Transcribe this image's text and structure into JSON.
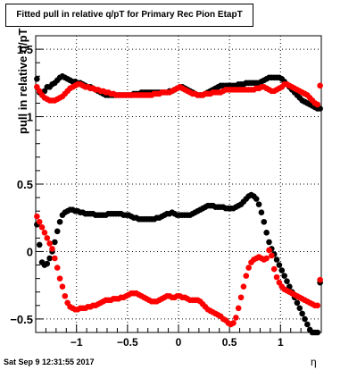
{
  "title": "Fitted pull in relative q/pT for Primary Rec Pion EtapT",
  "timestamp": "Sat Sep  9 12:31:55 2017",
  "chart_data": {
    "type": "scatter",
    "title": "Fitted pull in relative q/pT for Primary Rec Pion EtapT",
    "xlabel": "η",
    "ylabel": "pull in relative q/pT",
    "xlim": [
      -1.4,
      1.4
    ],
    "ylim": [
      -0.6,
      1.6
    ],
    "grid": true,
    "xticks": [
      -1,
      -0.5,
      0,
      0.5,
      1
    ],
    "xtick_labels": [
      "−1",
      "−0.5",
      "0",
      "0.5",
      "1"
    ],
    "yticks": [
      -0.5,
      0,
      0.5,
      1,
      1.5
    ],
    "ytick_labels": [
      "−0.5",
      "0",
      "0.5",
      "1",
      "1.5"
    ],
    "series": [
      {
        "color": "#000000",
        "x": [
          -1.388,
          -1.363,
          -1.338,
          -1.313,
          -1.288,
          -1.263,
          -1.238,
          -1.213,
          -1.188,
          -1.163,
          -1.138,
          -1.113,
          -1.088,
          -1.063,
          -1.038,
          -1.013,
          -0.988,
          -0.963,
          -0.938,
          -0.913,
          -0.888,
          -0.863,
          -0.838,
          -0.813,
          -0.788,
          -0.763,
          -0.738,
          -0.713,
          -0.688,
          -0.663,
          -0.638,
          -0.613,
          -0.588,
          -0.563,
          -0.538,
          -0.513,
          -0.488,
          -0.463,
          -0.438,
          -0.413,
          -0.388,
          -0.363,
          -0.338,
          -0.313,
          -0.288,
          -0.263,
          -0.238,
          -0.213,
          -0.188,
          -0.163,
          -0.138,
          -0.113,
          -0.088,
          -0.063,
          -0.038,
          -0.013,
          0.013,
          0.038,
          0.063,
          0.088,
          0.113,
          0.138,
          0.163,
          0.188,
          0.213,
          0.238,
          0.263,
          0.288,
          0.313,
          0.338,
          0.363,
          0.388,
          0.413,
          0.438,
          0.463,
          0.488,
          0.513,
          0.538,
          0.563,
          0.588,
          0.613,
          0.638,
          0.663,
          0.688,
          0.713,
          0.738,
          0.763,
          0.788,
          0.813,
          0.838,
          0.863,
          0.888,
          0.913,
          0.938,
          0.963,
          0.988,
          1.013,
          1.038,
          1.063,
          1.088,
          1.113,
          1.138,
          1.163,
          1.188,
          1.213,
          1.238,
          1.263,
          1.288,
          1.313,
          1.338,
          1.363,
          1.388
        ],
        "y": [
          1.28,
          1.18,
          1.17,
          1.19,
          1.22,
          1.22,
          1.24,
          1.25,
          1.27,
          1.29,
          1.3,
          1.29,
          1.28,
          1.27,
          1.26,
          1.26,
          1.25,
          1.25,
          1.24,
          1.23,
          1.22,
          1.22,
          1.21,
          1.2,
          1.19,
          1.18,
          1.17,
          1.16,
          1.16,
          1.16,
          1.16,
          1.16,
          1.16,
          1.16,
          1.16,
          1.16,
          1.16,
          1.16,
          1.17,
          1.17,
          1.17,
          1.18,
          1.18,
          1.18,
          1.18,
          1.18,
          1.18,
          1.18,
          1.18,
          1.18,
          1.18,
          1.18,
          1.19,
          1.19,
          1.2,
          1.21,
          1.22,
          1.22,
          1.21,
          1.2,
          1.19,
          1.18,
          1.17,
          1.16,
          1.16,
          1.16,
          1.17,
          1.18,
          1.19,
          1.2,
          1.21,
          1.22,
          1.23,
          1.23,
          1.23,
          1.23,
          1.23,
          1.23,
          1.23,
          1.24,
          1.24,
          1.24,
          1.25,
          1.25,
          1.25,
          1.25,
          1.25,
          1.25,
          1.26,
          1.27,
          1.28,
          1.29,
          1.29,
          1.29,
          1.29,
          1.29,
          1.28,
          1.26,
          1.24,
          1.22,
          1.2,
          1.18,
          1.16,
          1.14,
          1.12,
          1.11,
          1.1,
          1.09,
          1.08,
          1.07,
          1.06,
          1.06
        ]
      },
      {
        "color": "#ff0000",
        "x": [
          -1.388,
          -1.363,
          -1.338,
          -1.313,
          -1.288,
          -1.263,
          -1.238,
          -1.213,
          -1.188,
          -1.163,
          -1.138,
          -1.113,
          -1.088,
          -1.063,
          -1.038,
          -1.013,
          -0.988,
          -0.963,
          -0.938,
          -0.913,
          -0.888,
          -0.863,
          -0.838,
          -0.813,
          -0.788,
          -0.763,
          -0.738,
          -0.713,
          -0.688,
          -0.663,
          -0.638,
          -0.613,
          -0.588,
          -0.563,
          -0.538,
          -0.513,
          -0.488,
          -0.463,
          -0.438,
          -0.413,
          -0.388,
          -0.363,
          -0.338,
          -0.313,
          -0.288,
          -0.263,
          -0.238,
          -0.213,
          -0.188,
          -0.163,
          -0.138,
          -0.113,
          -0.088,
          -0.063,
          -0.038,
          -0.013,
          0.013,
          0.038,
          0.063,
          0.088,
          0.113,
          0.138,
          0.163,
          0.188,
          0.213,
          0.238,
          0.263,
          0.288,
          0.313,
          0.338,
          0.363,
          0.388,
          0.413,
          0.438,
          0.463,
          0.488,
          0.513,
          0.538,
          0.563,
          0.588,
          0.613,
          0.638,
          0.663,
          0.688,
          0.713,
          0.738,
          0.763,
          0.788,
          0.813,
          0.838,
          0.863,
          0.888,
          0.913,
          0.938,
          0.963,
          0.988,
          1.013,
          1.038,
          1.063,
          1.088,
          1.113,
          1.138,
          1.163,
          1.188,
          1.213,
          1.238,
          1.263,
          1.288,
          1.313,
          1.338,
          1.363,
          1.388
        ],
        "y": [
          1.22,
          1.19,
          1.16,
          1.14,
          1.13,
          1.12,
          1.12,
          1.12,
          1.13,
          1.14,
          1.15,
          1.17,
          1.19,
          1.21,
          1.22,
          1.23,
          1.24,
          1.24,
          1.23,
          1.22,
          1.22,
          1.21,
          1.21,
          1.2,
          1.2,
          1.19,
          1.19,
          1.18,
          1.18,
          1.17,
          1.17,
          1.16,
          1.16,
          1.16,
          1.16,
          1.16,
          1.16,
          1.16,
          1.16,
          1.16,
          1.16,
          1.16,
          1.16,
          1.16,
          1.16,
          1.16,
          1.17,
          1.17,
          1.17,
          1.18,
          1.18,
          1.18,
          1.18,
          1.19,
          1.2,
          1.21,
          1.22,
          1.21,
          1.2,
          1.19,
          1.18,
          1.17,
          1.17,
          1.16,
          1.16,
          1.16,
          1.17,
          1.17,
          1.17,
          1.18,
          1.18,
          1.18,
          1.18,
          1.19,
          1.2,
          1.2,
          1.2,
          1.2,
          1.2,
          1.2,
          1.2,
          1.2,
          1.2,
          1.2,
          1.2,
          1.2,
          1.21,
          1.21,
          1.22,
          1.22,
          1.21,
          1.2,
          1.19,
          1.19,
          1.2,
          1.21,
          1.22,
          1.24,
          1.24,
          1.23,
          1.22,
          1.21,
          1.2,
          1.19,
          1.18,
          1.17,
          1.16,
          1.14,
          1.12,
          1.1,
          1.09,
          1.23
        ]
      },
      {
        "color": "#000000",
        "x": [
          -1.388,
          -1.363,
          -1.338,
          -1.313,
          -1.288,
          -1.263,
          -1.238,
          -1.213,
          -1.188,
          -1.163,
          -1.138,
          -1.113,
          -1.088,
          -1.063,
          -1.038,
          -1.013,
          -0.988,
          -0.963,
          -0.938,
          -0.913,
          -0.888,
          -0.863,
          -0.838,
          -0.813,
          -0.788,
          -0.763,
          -0.738,
          -0.713,
          -0.688,
          -0.663,
          -0.638,
          -0.613,
          -0.588,
          -0.563,
          -0.538,
          -0.513,
          -0.488,
          -0.463,
          -0.438,
          -0.413,
          -0.388,
          -0.363,
          -0.338,
          -0.313,
          -0.288,
          -0.263,
          -0.238,
          -0.213,
          -0.188,
          -0.163,
          -0.138,
          -0.113,
          -0.088,
          -0.063,
          -0.038,
          -0.013,
          0.013,
          0.038,
          0.063,
          0.088,
          0.113,
          0.138,
          0.163,
          0.188,
          0.213,
          0.238,
          0.263,
          0.288,
          0.313,
          0.338,
          0.363,
          0.388,
          0.413,
          0.438,
          0.463,
          0.488,
          0.513,
          0.538,
          0.563,
          0.588,
          0.613,
          0.638,
          0.663,
          0.688,
          0.713,
          0.738,
          0.763,
          0.788,
          0.813,
          0.838,
          0.863,
          0.888,
          0.913,
          0.938,
          0.963,
          0.988,
          1.013,
          1.038,
          1.063,
          1.088,
          1.113,
          1.138,
          1.163,
          1.188,
          1.213,
          1.238,
          1.263,
          1.288,
          1.313,
          1.338,
          1.363,
          1.388
        ],
        "y": [
          0.2,
          0.05,
          -0.08,
          -0.1,
          -0.09,
          -0.05,
          0.0,
          0.07,
          0.15,
          0.22,
          0.27,
          0.29,
          0.3,
          0.31,
          0.31,
          0.3,
          0.3,
          0.29,
          0.29,
          0.28,
          0.28,
          0.28,
          0.28,
          0.27,
          0.27,
          0.27,
          0.27,
          0.27,
          0.28,
          0.28,
          0.28,
          0.28,
          0.28,
          0.28,
          0.27,
          0.27,
          0.27,
          0.26,
          0.25,
          0.25,
          0.24,
          0.24,
          0.24,
          0.24,
          0.24,
          0.24,
          0.24,
          0.25,
          0.25,
          0.26,
          0.27,
          0.28,
          0.28,
          0.29,
          0.28,
          0.27,
          0.27,
          0.27,
          0.27,
          0.27,
          0.27,
          0.28,
          0.29,
          0.3,
          0.31,
          0.32,
          0.33,
          0.34,
          0.34,
          0.34,
          0.33,
          0.33,
          0.33,
          0.33,
          0.32,
          0.32,
          0.32,
          0.32,
          0.33,
          0.34,
          0.35,
          0.37,
          0.39,
          0.41,
          0.42,
          0.41,
          0.39,
          0.35,
          0.29,
          0.22,
          0.14,
          0.07,
          0.02,
          -0.02,
          -0.06,
          -0.1,
          -0.14,
          -0.18,
          -0.22,
          -0.26,
          -0.3,
          -0.34,
          -0.38,
          -0.42,
          -0.46,
          -0.5,
          -0.54,
          -0.58,
          -0.6,
          -0.6,
          -0.6,
          -0.23
        ]
      },
      {
        "color": "#ff0000",
        "x": [
          -1.388,
          -1.363,
          -1.338,
          -1.313,
          -1.288,
          -1.263,
          -1.238,
          -1.213,
          -1.188,
          -1.163,
          -1.138,
          -1.113,
          -1.088,
          -1.063,
          -1.038,
          -1.013,
          -0.988,
          -0.963,
          -0.938,
          -0.913,
          -0.888,
          -0.863,
          -0.838,
          -0.813,
          -0.788,
          -0.763,
          -0.738,
          -0.713,
          -0.688,
          -0.663,
          -0.638,
          -0.613,
          -0.588,
          -0.563,
          -0.538,
          -0.513,
          -0.488,
          -0.463,
          -0.438,
          -0.413,
          -0.388,
          -0.363,
          -0.338,
          -0.313,
          -0.288,
          -0.263,
          -0.238,
          -0.213,
          -0.188,
          -0.163,
          -0.138,
          -0.113,
          -0.088,
          -0.063,
          -0.038,
          -0.013,
          0.013,
          0.038,
          0.063,
          0.088,
          0.113,
          0.138,
          0.163,
          0.188,
          0.213,
          0.238,
          0.263,
          0.288,
          0.313,
          0.338,
          0.363,
          0.388,
          0.413,
          0.438,
          0.463,
          0.488,
          0.513,
          0.538,
          0.563,
          0.588,
          0.613,
          0.638,
          0.663,
          0.688,
          0.713,
          0.738,
          0.763,
          0.788,
          0.813,
          0.838,
          0.863,
          0.888,
          0.913,
          0.938,
          0.963,
          0.988,
          1.013,
          1.038,
          1.063,
          1.088,
          1.113,
          1.138,
          1.163,
          1.188,
          1.213,
          1.238,
          1.263,
          1.288,
          1.313,
          1.338,
          1.363,
          1.388
        ],
        "y": [
          0.26,
          0.22,
          0.18,
          0.14,
          0.1,
          0.06,
          0.02,
          -0.05,
          -0.12,
          -0.2,
          -0.26,
          -0.33,
          -0.38,
          -0.41,
          -0.42,
          -0.43,
          -0.43,
          -0.42,
          -0.42,
          -0.42,
          -0.41,
          -0.41,
          -0.4,
          -0.4,
          -0.39,
          -0.38,
          -0.37,
          -0.36,
          -0.36,
          -0.36,
          -0.35,
          -0.35,
          -0.35,
          -0.34,
          -0.34,
          -0.33,
          -0.32,
          -0.31,
          -0.31,
          -0.31,
          -0.32,
          -0.33,
          -0.34,
          -0.35,
          -0.36,
          -0.37,
          -0.37,
          -0.37,
          -0.36,
          -0.35,
          -0.34,
          -0.33,
          -0.33,
          -0.34,
          -0.34,
          -0.33,
          -0.33,
          -0.34,
          -0.34,
          -0.35,
          -0.36,
          -0.36,
          -0.36,
          -0.36,
          -0.37,
          -0.39,
          -0.41,
          -0.43,
          -0.44,
          -0.45,
          -0.46,
          -0.47,
          -0.48,
          -0.5,
          -0.51,
          -0.53,
          -0.54,
          -0.53,
          -0.49,
          -0.42,
          -0.34,
          -0.26,
          -0.18,
          -0.12,
          -0.08,
          -0.06,
          -0.05,
          -0.04,
          -0.05,
          -0.06,
          -0.05,
          0.01,
          -0.03,
          -0.13,
          -0.19,
          -0.23,
          -0.26,
          -0.28,
          -0.29,
          -0.3,
          -0.31,
          -0.32,
          -0.33,
          -0.34,
          -0.35,
          -0.36,
          -0.37,
          -0.38,
          -0.39,
          -0.4,
          -0.4,
          -0.21
        ]
      }
    ]
  }
}
